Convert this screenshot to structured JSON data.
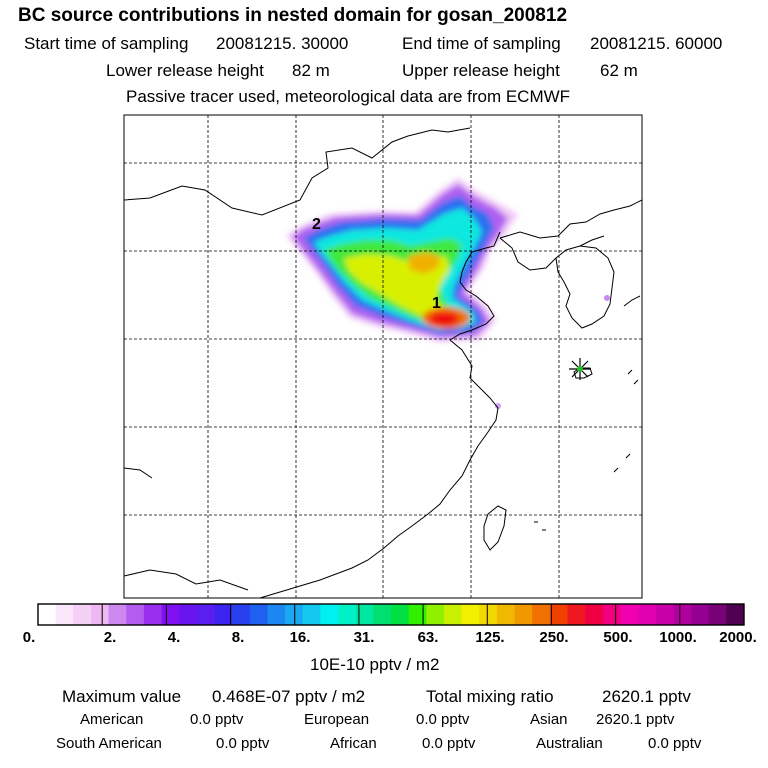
{
  "header": {
    "title": "BC  source contributions in nested domain for gosan_200812",
    "start_label": "Start time of sampling",
    "start_value": "20081215. 30000",
    "end_label": "End time of sampling",
    "end_value": "20081215. 60000",
    "lower_label": "Lower release height",
    "lower_value": "82 m",
    "upper_label": "Upper release height",
    "upper_value": "62 m",
    "note": "Passive tracer used, meteorological data are from ECMWF"
  },
  "map": {
    "labels": [
      {
        "id": "1",
        "text": "1"
      },
      {
        "id": "2",
        "text": "2"
      }
    ],
    "station_icon": "receptor-star-icon"
  },
  "colorbar": {
    "unit": "10E-10 pptv / m2",
    "tick_labels": [
      "0.",
      "2.",
      "4.",
      "8.",
      "16.",
      "31.",
      "63.",
      "125.",
      "250.",
      "500.",
      "1000.",
      "2000."
    ],
    "colors": [
      "#ffffff",
      "#fbe6fb",
      "#f5d0f6",
      "#eeb8f2",
      "#cc88ee",
      "#b45cf0",
      "#9a2ff0",
      "#8010f0",
      "#6a14ee",
      "#5a1ef0",
      "#3c24f0",
      "#2a40f0",
      "#2060f0",
      "#1e86f0",
      "#1aa8f0",
      "#14c8f0",
      "#00f0f0",
      "#00f0c8",
      "#00e8a0",
      "#00e070",
      "#00e040",
      "#30f000",
      "#90f000",
      "#c8f000",
      "#f0f000",
      "#f0d800",
      "#f0b800",
      "#f09800",
      "#f07000",
      "#f04000",
      "#f01820",
      "#f00040",
      "#f00080",
      "#f000b0",
      "#e000b0",
      "#c800a8",
      "#b000a0",
      "#960090",
      "#780078",
      "#500050"
    ]
  },
  "footer": {
    "max_label": "Maximum value",
    "max_value": "0.468E-07 pptv / m2",
    "total_label": "Total mixing ratio",
    "total_value": "2620.1 pptv",
    "regions": [
      {
        "name": "American",
        "value": "0.0 pptv"
      },
      {
        "name": "European",
        "value": "0.0 pptv"
      },
      {
        "name": "Asian",
        "value": "2620.1 pptv"
      },
      {
        "name": "South American",
        "value": "0.0 pptv"
      },
      {
        "name": "African",
        "value": "0.0 pptv"
      },
      {
        "name": "Australian",
        "value": "0.0 pptv"
      }
    ]
  }
}
